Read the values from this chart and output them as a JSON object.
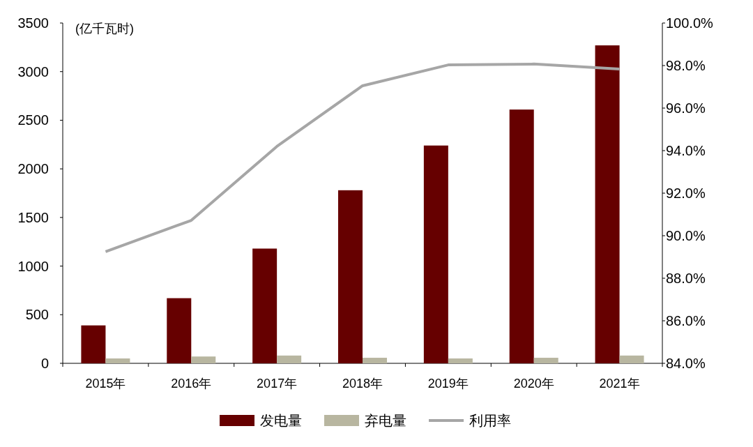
{
  "chart_data": {
    "type": "bar",
    "ylabel": "(亿千瓦时)",
    "categories": [
      "2015年",
      "2016年",
      "2017年",
      "2018年",
      "2019年",
      "2020年",
      "2021年"
    ],
    "series": [
      {
        "name": "发电量",
        "color": "#660000",
        "values": [
          390,
          670,
          1180,
          1780,
          2240,
          2610,
          3270
        ]
      },
      {
        "name": "弃电量",
        "color": "#b8b6a0",
        "values": [
          50,
          70,
          80,
          57,
          50,
          57,
          80
        ]
      },
      {
        "name": "利用率",
        "type": "line",
        "axis": "y2",
        "color": "#a6a6a6",
        "values": [
          89.25,
          90.72,
          94.2,
          97.05,
          98.03,
          98.07,
          97.84
        ]
      }
    ],
    "ylim": [
      0,
      3500
    ],
    "yticks": [
      0,
      500,
      1000,
      1500,
      2000,
      2500,
      3000,
      3500
    ],
    "y2lim": [
      84,
      100
    ],
    "y2ticks": [
      {
        "value": 84,
        "label": "84.0%"
      },
      {
        "value": 86,
        "label": "86.0%"
      },
      {
        "value": 88,
        "label": "88.0%"
      },
      {
        "value": 90,
        "label": "90.0%"
      },
      {
        "value": 92,
        "label": "92.0%"
      },
      {
        "value": 94,
        "label": "94.0%"
      },
      {
        "value": 96,
        "label": "96.0%"
      },
      {
        "value": 98,
        "label": "98.0%"
      },
      {
        "value": 100,
        "label": "100.0%"
      }
    ],
    "grid": false,
    "legend": "bottom",
    "marker": "none",
    "line_style": "solid"
  }
}
